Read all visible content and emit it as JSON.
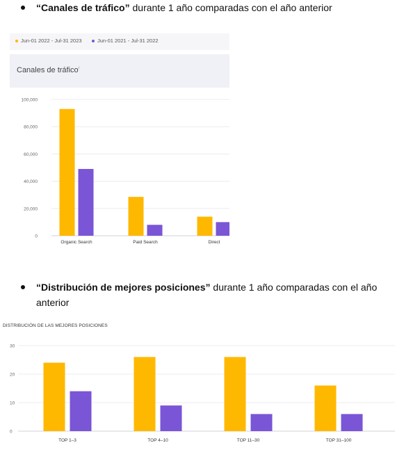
{
  "bullets": [
    {
      "bold": "“Canales de tráfico”",
      "rest": " durante 1 año comparadas con el año anterior"
    },
    {
      "bold": "“Distribución de mejores posiciones”",
      "rest": " durante 1 año comparadas con el año anterior"
    }
  ],
  "legend": {
    "current": "Jun-01 2022 - Jul-31 2023",
    "previous": "Jun-01 2021 - Jul-31 2022"
  },
  "colors": {
    "current": "#FFB800",
    "previous": "#7A55D6"
  },
  "chart1_header": {
    "title": "Canales de tráfico",
    "info": "i"
  },
  "chart2_header": {
    "title": "DISTRIBUCIÓN DE LAS MEJORES POSICIONES"
  },
  "chart_data": [
    {
      "type": "bar",
      "title": "Canales de tráfico",
      "categories": [
        "Organic Search",
        "Paid Search",
        "Direct"
      ],
      "series": [
        {
          "name": "Jun-01 2022 - Jul-31 2023",
          "values": [
            93000,
            28500,
            14000
          ]
        },
        {
          "name": "Jun-01 2021 - Jul-31 2022",
          "values": [
            49000,
            8000,
            10000
          ]
        }
      ],
      "yticks": [
        "100,000",
        "80,000",
        "60,000",
        "40,000",
        "20,000",
        "0"
      ],
      "ylim": [
        0,
        100000
      ],
      "grid": true,
      "legend": "top-left"
    },
    {
      "type": "bar",
      "title": "DISTRIBUCIÓN DE LAS MEJORES POSICIONES",
      "categories": [
        "TOP 1–3",
        "TOP 4–10",
        "TOP 11–30",
        "TOP 31–100"
      ],
      "series": [
        {
          "values": [
            24,
            26,
            26,
            16
          ]
        },
        {
          "values": [
            14,
            9,
            6,
            6
          ]
        }
      ],
      "yticks": [
        "30",
        "20",
        "10",
        "0"
      ],
      "ylim": [
        0,
        30
      ],
      "grid": true
    }
  ]
}
